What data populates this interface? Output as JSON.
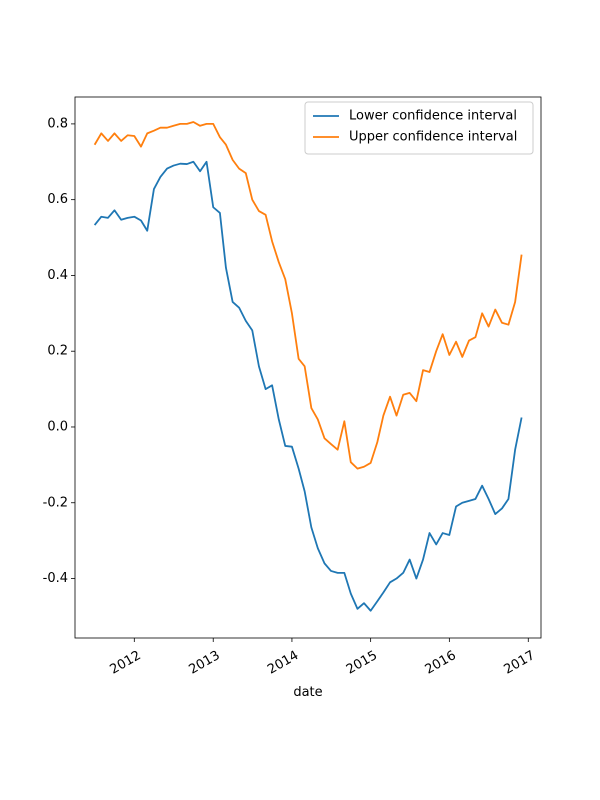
{
  "chart_data": {
    "type": "line",
    "xlabel": "date",
    "x": [
      "2011-07",
      "2011-08",
      "2011-09",
      "2011-10",
      "2011-11",
      "2011-12",
      "2012-01",
      "2012-02",
      "2012-03",
      "2012-04",
      "2012-05",
      "2012-06",
      "2012-07",
      "2012-08",
      "2012-09",
      "2012-10",
      "2012-11",
      "2012-12",
      "2013-01",
      "2013-02",
      "2013-03",
      "2013-04",
      "2013-05",
      "2013-06",
      "2013-07",
      "2013-08",
      "2013-09",
      "2013-10",
      "2013-11",
      "2013-12",
      "2014-01",
      "2014-02",
      "2014-03",
      "2014-04",
      "2014-05",
      "2014-06",
      "2014-07",
      "2014-08",
      "2014-09",
      "2014-10",
      "2014-11",
      "2014-12",
      "2015-01",
      "2015-02",
      "2015-03",
      "2015-04",
      "2015-05",
      "2015-06",
      "2015-07",
      "2015-08",
      "2015-09",
      "2015-10",
      "2015-11",
      "2015-12",
      "2016-01",
      "2016-02",
      "2016-03",
      "2016-04",
      "2016-05",
      "2016-06",
      "2016-07",
      "2016-08",
      "2016-09",
      "2016-10",
      "2016-11",
      "2016-12"
    ],
    "series": [
      {
        "name": "Lower confidence interval",
        "color": "#1f77b4",
        "values": [
          0.533,
          0.555,
          0.552,
          0.572,
          0.547,
          0.552,
          0.555,
          0.545,
          0.518,
          0.628,
          0.66,
          0.682,
          0.69,
          0.695,
          0.694,
          0.7,
          0.675,
          0.7,
          0.58,
          0.565,
          0.42,
          0.33,
          0.315,
          0.28,
          0.255,
          0.16,
          0.1,
          0.11,
          0.02,
          -0.05,
          -0.052,
          -0.11,
          -0.17,
          -0.265,
          -0.32,
          -0.36,
          -0.38,
          -0.385,
          -0.385,
          -0.44,
          -0.48,
          -0.465,
          -0.485,
          -0.46,
          -0.437,
          -0.41,
          -0.4,
          -0.385,
          -0.35,
          -0.4,
          -0.35,
          -0.28,
          -0.31,
          -0.28,
          -0.285,
          -0.21,
          -0.2,
          -0.195,
          -0.19,
          -0.155,
          -0.19,
          -0.23,
          -0.215,
          -0.19,
          -0.06,
          0.025
        ]
      },
      {
        "name": "Upper confidence interval",
        "color": "#ff7f0e",
        "values": [
          0.745,
          0.775,
          0.755,
          0.775,
          0.755,
          0.77,
          0.768,
          0.74,
          0.775,
          0.782,
          0.79,
          0.79,
          0.795,
          0.8,
          0.8,
          0.805,
          0.795,
          0.8,
          0.8,
          0.765,
          0.745,
          0.705,
          0.682,
          0.67,
          0.6,
          0.57,
          0.56,
          0.49,
          0.435,
          0.39,
          0.3,
          0.18,
          0.16,
          0.05,
          0.02,
          -0.03,
          -0.045,
          -0.06,
          0.015,
          -0.093,
          -0.11,
          -0.105,
          -0.095,
          -0.04,
          0.03,
          0.08,
          0.03,
          0.085,
          0.09,
          0.068,
          0.15,
          0.145,
          0.2,
          0.245,
          0.19,
          0.225,
          0.185,
          0.228,
          0.237,
          0.3,
          0.265,
          0.31,
          0.275,
          0.27,
          0.33,
          0.455
        ]
      }
    ],
    "xlim": [
      "2011-04",
      "2017-03"
    ],
    "xticks": [
      {
        "value": "2012-01",
        "label": "2012"
      },
      {
        "value": "2013-01",
        "label": "2013"
      },
      {
        "value": "2014-01",
        "label": "2014"
      },
      {
        "value": "2015-01",
        "label": "2015"
      },
      {
        "value": "2016-01",
        "label": "2016"
      },
      {
        "value": "2017-01",
        "label": "2017"
      }
    ],
    "ylim": [
      -0.557,
      0.871
    ],
    "yticks": [
      -0.4,
      -0.2,
      {
        "value": 0,
        "label": "0.0"
      },
      0.2,
      0.4,
      0.6,
      0.8
    ],
    "legend": "upper right"
  }
}
